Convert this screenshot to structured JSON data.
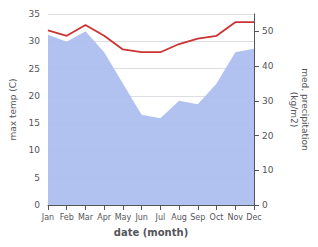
{
  "chart_data": {
    "type": "line",
    "xlabel": "date (month)",
    "ylabel": "max temp (C)",
    "y2label": "med. precipitation\n(kg/m2)",
    "categories": [
      "Jan",
      "Feb",
      "Mar",
      "Apr",
      "May",
      "Jun",
      "Jul",
      "Aug",
      "Sep",
      "Oct",
      "Nov",
      "Dec"
    ],
    "series": [
      {
        "type": "area",
        "axis": "y2",
        "color": "#aabbee",
        "values": [
          49.0,
          47.0,
          50.0,
          44.0,
          35.0,
          26.0,
          25.0,
          30.0,
          29.0,
          35.0,
          44.0,
          45.0
        ]
      },
      {
        "type": "line",
        "color": "#cc3333",
        "values": [
          32.0,
          31.0,
          33.0,
          31.0,
          28.5,
          28.0,
          28.0,
          29.5,
          30.5,
          31.0,
          33.5,
          33.5
        ]
      }
    ],
    "ylim": [
      0,
      35
    ],
    "yticks": [
      0,
      5,
      10,
      15,
      20,
      25,
      30,
      35
    ],
    "y2lim": [
      0,
      55
    ],
    "y2ticks": [
      0,
      10,
      20,
      30,
      40,
      50
    ],
    "grid": true
  }
}
